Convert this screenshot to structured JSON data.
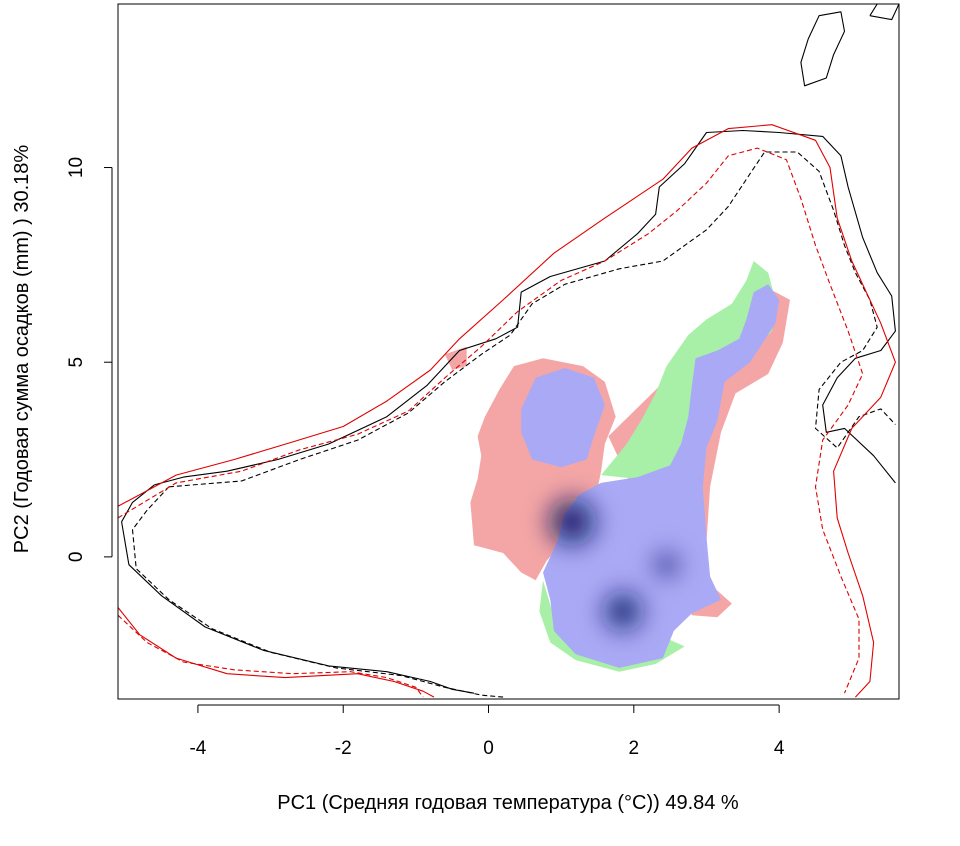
{
  "chart_data": {
    "type": "heatmap",
    "title": "",
    "xlabel": "PC1 (Средняя годовая температура (°C)) 49.84 %",
    "ylabel": "PC2 (Годовая сумма осадков  (mm) ) 30.18%",
    "xlim": [
      -5.1,
      5.65
    ],
    "ylim": [
      -3.65,
      14.2
    ],
    "x_ticks": [
      -4,
      -2,
      0,
      2,
      4
    ],
    "x_tick_labels": [
      "-4",
      "-2",
      "0",
      "2",
      "4"
    ],
    "y_ticks": [
      0,
      5,
      10
    ],
    "y_tick_labels": [
      "0",
      "5",
      "10"
    ],
    "grid": false,
    "legend": "none",
    "colors": {
      "region_1_only": "#f4a6a6",
      "region_2_only": "#a8f0a8",
      "overlap": "#a9a9f5",
      "density_max": "#0a1460",
      "contour_solid_black": "#000000",
      "contour_dashed_black": "#000000",
      "contour_solid_red": "#e00000",
      "contour_dashed_red": "#e00000"
    },
    "regions": [
      {
        "category": "region_1_only",
        "polygon": [
          [
            -0.6,
            5.2
          ],
          [
            -0.3,
            5.4
          ],
          [
            -0.3,
            4.9
          ],
          [
            -0.5,
            4.8
          ]
        ]
      },
      {
        "category": "region_1_only",
        "polygon": [
          [
            0.35,
            4.9
          ],
          [
            0.75,
            5.1
          ],
          [
            1.3,
            4.9
          ],
          [
            1.6,
            4.5
          ],
          [
            1.75,
            3.6
          ],
          [
            1.6,
            2.9
          ],
          [
            1.55,
            2.2
          ],
          [
            1.45,
            1.3
          ],
          [
            1.05,
            0.45
          ],
          [
            0.8,
            -0.1
          ],
          [
            0.65,
            -0.6
          ],
          [
            0.45,
            -0.4
          ],
          [
            0.2,
            0.1
          ],
          [
            -0.2,
            0.3
          ],
          [
            -0.25,
            1.4
          ],
          [
            -0.15,
            2.0
          ],
          [
            -0.1,
            2.6
          ],
          [
            -0.15,
            3.1
          ],
          [
            -0.05,
            3.6
          ],
          [
            0.15,
            4.3
          ]
        ]
      },
      {
        "category": "region_1_only",
        "polygon": [
          [
            1.65,
            3.1
          ],
          [
            3.4,
            6.3
          ],
          [
            3.75,
            7.0
          ],
          [
            4.15,
            6.6
          ],
          [
            4.05,
            5.5
          ],
          [
            3.85,
            4.7
          ],
          [
            3.4,
            4.2
          ],
          [
            3.2,
            3.2
          ],
          [
            3.05,
            1.8
          ],
          [
            3.0,
            0.4
          ],
          [
            3.05,
            -0.7
          ],
          [
            3.35,
            -1.2
          ],
          [
            3.15,
            -1.55
          ],
          [
            2.8,
            -1.5
          ]
        ]
      },
      {
        "category": "region_2_only",
        "polygon": [
          [
            1.55,
            2.1
          ],
          [
            1.9,
            2.9
          ],
          [
            2.1,
            3.5
          ],
          [
            2.3,
            4.2
          ],
          [
            2.45,
            4.9
          ],
          [
            2.75,
            5.7
          ],
          [
            3.0,
            6.1
          ],
          [
            3.35,
            6.5
          ],
          [
            3.55,
            7.1
          ],
          [
            3.65,
            7.6
          ],
          [
            3.85,
            7.3
          ],
          [
            3.95,
            6.6
          ],
          [
            3.9,
            5.8
          ],
          [
            3.55,
            5.1
          ],
          [
            3.1,
            4.6
          ],
          [
            2.85,
            3.8
          ],
          [
            2.7,
            2.9
          ],
          [
            2.55,
            2.3
          ],
          [
            2.05,
            2.0
          ]
        ]
      },
      {
        "category": "region_2_only",
        "polygon": [
          [
            0.75,
            -0.6
          ],
          [
            0.7,
            -1.4
          ],
          [
            0.85,
            -2.2
          ],
          [
            1.2,
            -2.65
          ],
          [
            1.8,
            -2.95
          ],
          [
            2.3,
            -2.75
          ],
          [
            2.7,
            -2.3
          ],
          [
            2.4,
            -2.05
          ],
          [
            1.9,
            -2.15
          ],
          [
            1.3,
            -2.2
          ],
          [
            0.95,
            -1.85
          ]
        ]
      },
      {
        "category": "overlap",
        "polygon": [
          [
            0.45,
            3.8
          ],
          [
            0.65,
            4.6
          ],
          [
            1.05,
            4.85
          ],
          [
            1.45,
            4.6
          ],
          [
            1.6,
            3.9
          ],
          [
            1.45,
            3.1
          ],
          [
            1.35,
            2.5
          ],
          [
            1.0,
            2.3
          ],
          [
            0.6,
            2.5
          ],
          [
            0.45,
            3.2
          ]
        ]
      },
      {
        "category": "overlap",
        "polygon": [
          [
            1.55,
            1.9
          ],
          [
            2.05,
            2.05
          ],
          [
            2.5,
            2.35
          ],
          [
            2.65,
            2.9
          ],
          [
            2.75,
            3.6
          ],
          [
            2.8,
            4.4
          ],
          [
            2.85,
            5.1
          ],
          [
            3.15,
            5.3
          ],
          [
            3.45,
            5.6
          ],
          [
            3.55,
            6.1
          ],
          [
            3.65,
            6.8
          ],
          [
            3.85,
            7.0
          ],
          [
            4.0,
            6.6
          ],
          [
            3.95,
            6.0
          ],
          [
            3.6,
            5.0
          ],
          [
            3.25,
            4.5
          ],
          [
            3.15,
            3.5
          ],
          [
            3.0,
            2.8
          ],
          [
            2.95,
            1.8
          ],
          [
            3.0,
            0.5
          ],
          [
            3.05,
            -0.5
          ],
          [
            3.2,
            -1.1
          ],
          [
            2.8,
            -1.45
          ],
          [
            2.55,
            -1.9
          ],
          [
            2.4,
            -2.6
          ],
          [
            1.8,
            -2.85
          ],
          [
            1.2,
            -2.5
          ],
          [
            0.9,
            -1.9
          ],
          [
            0.85,
            -1.1
          ],
          [
            0.75,
            -0.4
          ],
          [
            0.95,
            0.4
          ],
          [
            1.05,
            1.1
          ],
          [
            1.25,
            1.6
          ]
        ]
      }
    ],
    "density_peaks": [
      {
        "x": 1.15,
        "y": 0.9,
        "level": 1.0
      },
      {
        "x": 1.85,
        "y": -1.4,
        "level": 0.75
      },
      {
        "x": 2.45,
        "y": -0.2,
        "level": 0.35
      }
    ],
    "contours": [
      {
        "style": "solid_black",
        "points": [
          [
            -4.6,
            1.85
          ],
          [
            -4.2,
            2.05
          ],
          [
            -3.6,
            2.2
          ],
          [
            -2.9,
            2.5
          ],
          [
            -2.2,
            2.9
          ],
          [
            -1.4,
            3.6
          ],
          [
            -0.85,
            4.4
          ],
          [
            -0.4,
            5.3
          ],
          [
            0.1,
            5.6
          ],
          [
            0.4,
            5.9
          ],
          [
            0.45,
            6.8
          ],
          [
            0.85,
            7.2
          ],
          [
            1.6,
            7.6
          ],
          [
            2.05,
            8.3
          ],
          [
            2.3,
            8.8
          ],
          [
            2.35,
            9.5
          ],
          [
            2.7,
            10.1
          ],
          [
            3.0,
            10.9
          ],
          [
            3.5,
            10.95
          ],
          [
            4.0,
            10.9
          ],
          [
            4.6,
            10.8
          ],
          [
            4.85,
            10.3
          ],
          [
            4.95,
            9.5
          ],
          [
            5.15,
            8.2
          ],
          [
            5.35,
            7.3
          ],
          [
            5.55,
            6.7
          ],
          [
            5.6,
            5.8
          ],
          [
            5.4,
            5.3
          ],
          [
            5.05,
            5.1
          ],
          [
            4.8,
            4.6
          ],
          [
            4.6,
            3.9
          ],
          [
            4.65,
            3.2
          ],
          [
            4.9,
            3.3
          ],
          [
            5.3,
            2.6
          ],
          [
            5.6,
            1.9
          ]
        ]
      },
      {
        "style": "solid_black",
        "points": [
          [
            -4.6,
            1.85
          ],
          [
            -4.9,
            1.4
          ],
          [
            -5.05,
            0.9
          ],
          [
            -4.95,
            -0.2
          ],
          [
            -4.5,
            -1.0
          ],
          [
            -3.9,
            -1.8
          ],
          [
            -3.1,
            -2.4
          ],
          [
            -2.2,
            -2.8
          ],
          [
            -1.4,
            -2.95
          ],
          [
            -0.8,
            -3.2
          ],
          [
            -0.5,
            -3.4
          ],
          [
            -0.2,
            -3.5
          ]
        ]
      },
      {
        "style": "dashed_black",
        "points": [
          [
            -4.4,
            1.8
          ],
          [
            -3.4,
            1.95
          ],
          [
            -2.6,
            2.5
          ],
          [
            -1.8,
            3.0
          ],
          [
            -1.1,
            3.7
          ],
          [
            -0.6,
            4.5
          ],
          [
            -0.1,
            5.2
          ],
          [
            0.3,
            5.7
          ],
          [
            0.6,
            6.5
          ],
          [
            1.05,
            7.0
          ],
          [
            1.8,
            7.4
          ],
          [
            2.4,
            7.6
          ],
          [
            2.7,
            8.0
          ],
          [
            3.0,
            8.4
          ],
          [
            3.3,
            9.0
          ],
          [
            3.55,
            9.7
          ],
          [
            3.8,
            10.4
          ],
          [
            4.25,
            10.4
          ],
          [
            4.55,
            9.9
          ],
          [
            4.75,
            8.9
          ],
          [
            4.9,
            8.0
          ],
          [
            5.05,
            7.3
          ],
          [
            5.25,
            6.6
          ],
          [
            5.35,
            5.9
          ],
          [
            5.15,
            5.3
          ],
          [
            4.85,
            5.0
          ],
          [
            4.55,
            4.3
          ],
          [
            4.5,
            3.3
          ],
          [
            4.8,
            2.8
          ],
          [
            5.1,
            3.6
          ],
          [
            5.4,
            3.8
          ],
          [
            5.6,
            3.4
          ]
        ]
      },
      {
        "style": "dashed_black",
        "points": [
          [
            -4.4,
            1.8
          ],
          [
            -4.7,
            1.2
          ],
          [
            -4.9,
            0.7
          ],
          [
            -4.85,
            -0.3
          ],
          [
            -4.4,
            -1.1
          ],
          [
            -3.8,
            -1.85
          ],
          [
            -3.0,
            -2.45
          ],
          [
            -2.1,
            -2.85
          ],
          [
            -1.2,
            -3.05
          ],
          [
            -0.6,
            -3.35
          ],
          [
            -0.1,
            -3.55
          ],
          [
            0.2,
            -3.6
          ]
        ]
      },
      {
        "style": "solid_red",
        "points": [
          [
            -5.1,
            1.3
          ],
          [
            -4.3,
            2.1
          ],
          [
            -3.5,
            2.5
          ],
          [
            -2.7,
            2.95
          ],
          [
            -2.0,
            3.35
          ],
          [
            -1.4,
            4.0
          ],
          [
            -0.8,
            4.8
          ],
          [
            -0.4,
            5.6
          ],
          [
            0.2,
            6.6
          ],
          [
            0.9,
            7.8
          ],
          [
            1.6,
            8.7
          ],
          [
            2.0,
            9.2
          ],
          [
            2.4,
            9.7
          ],
          [
            2.8,
            10.5
          ],
          [
            3.3,
            11.0
          ],
          [
            3.9,
            11.1
          ],
          [
            4.5,
            10.7
          ],
          [
            4.7,
            10.0
          ],
          [
            4.8,
            8.7
          ],
          [
            5.0,
            7.6
          ],
          [
            5.4,
            6.0
          ],
          [
            5.6,
            5.0
          ],
          [
            5.4,
            4.1
          ],
          [
            5.0,
            3.3
          ],
          [
            4.75,
            2.2
          ],
          [
            4.8,
            1.0
          ],
          [
            4.95,
            0.1
          ],
          [
            5.15,
            -1.0
          ],
          [
            5.3,
            -2.2
          ],
          [
            5.25,
            -3.2
          ],
          [
            5.05,
            -3.6
          ]
        ]
      },
      {
        "style": "solid_red",
        "points": [
          [
            -5.1,
            -1.3
          ],
          [
            -4.8,
            -2.0
          ],
          [
            -4.3,
            -2.6
          ],
          [
            -3.6,
            -3.0
          ],
          [
            -2.8,
            -3.1
          ],
          [
            -1.8,
            -3.0
          ],
          [
            -1.3,
            -3.2
          ],
          [
            -0.9,
            -3.45
          ],
          [
            -0.75,
            -3.6
          ]
        ]
      },
      {
        "style": "dashed_red",
        "points": [
          [
            -5.1,
            1.0
          ],
          [
            -4.3,
            1.9
          ],
          [
            -3.4,
            2.2
          ],
          [
            -2.6,
            2.75
          ],
          [
            -1.8,
            3.15
          ],
          [
            -1.1,
            3.75
          ],
          [
            -0.6,
            4.6
          ],
          [
            -0.1,
            5.4
          ],
          [
            0.4,
            6.3
          ],
          [
            1.0,
            7.1
          ],
          [
            1.6,
            7.6
          ],
          [
            2.2,
            8.3
          ],
          [
            2.6,
            8.9
          ],
          [
            3.0,
            9.6
          ],
          [
            3.3,
            10.3
          ],
          [
            3.7,
            10.5
          ],
          [
            4.1,
            10.2
          ],
          [
            4.3,
            9.2
          ],
          [
            4.5,
            8.0
          ],
          [
            4.7,
            7.0
          ],
          [
            4.95,
            5.8
          ],
          [
            5.15,
            4.7
          ],
          [
            4.95,
            3.9
          ],
          [
            4.6,
            3.0
          ],
          [
            4.5,
            1.8
          ],
          [
            4.6,
            0.7
          ],
          [
            4.85,
            -0.5
          ],
          [
            5.1,
            -1.6
          ],
          [
            5.1,
            -2.6
          ],
          [
            4.9,
            -3.5
          ]
        ]
      },
      {
        "style": "dashed_red",
        "points": [
          [
            -5.1,
            -1.5
          ],
          [
            -4.7,
            -2.2
          ],
          [
            -4.2,
            -2.7
          ],
          [
            -3.5,
            -2.9
          ],
          [
            -2.7,
            -3.0
          ],
          [
            -1.9,
            -2.95
          ],
          [
            -1.4,
            -3.1
          ],
          [
            -1.0,
            -3.35
          ],
          [
            -0.9,
            -3.6
          ]
        ]
      },
      {
        "style": "solid_black",
        "points": [
          [
            4.4,
            13.3
          ],
          [
            4.55,
            13.9
          ],
          [
            4.85,
            14.0
          ],
          [
            4.9,
            13.5
          ],
          [
            4.75,
            12.9
          ],
          [
            4.65,
            12.3
          ],
          [
            4.35,
            12.1
          ],
          [
            4.3,
            12.7
          ],
          [
            4.4,
            13.3
          ]
        ]
      },
      {
        "style": "solid_black",
        "points": [
          [
            5.25,
            13.9
          ],
          [
            5.35,
            14.2
          ],
          [
            5.65,
            14.2
          ],
          [
            5.55,
            13.8
          ],
          [
            5.25,
            13.9
          ]
        ]
      }
    ]
  }
}
